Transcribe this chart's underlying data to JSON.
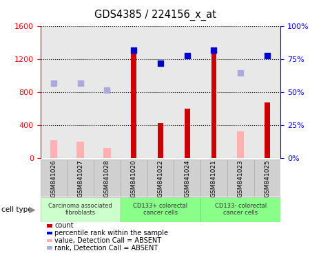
{
  "title": "GDS4385 / 224156_x_at",
  "samples": [
    "GSM841026",
    "GSM841027",
    "GSM841028",
    "GSM841020",
    "GSM841022",
    "GSM841024",
    "GSM841021",
    "GSM841023",
    "GSM841025"
  ],
  "count_values": [
    null,
    null,
    null,
    1340,
    430,
    600,
    1340,
    null,
    680
  ],
  "count_absent": [
    220,
    200,
    130,
    null,
    null,
    null,
    null,
    330,
    null
  ],
  "percentile_values": [
    null,
    null,
    null,
    82,
    72,
    78,
    82,
    null,
    78
  ],
  "percentile_absent": [
    57,
    57,
    52,
    null,
    null,
    null,
    null,
    65,
    null
  ],
  "cell_groups": [
    {
      "label": "Carcinoma associated\nfibroblasts",
      "start": 0,
      "end": 3,
      "color": "#ccffcc"
    },
    {
      "label": "CD133+ colorectal\ncancer cells",
      "start": 3,
      "end": 6,
      "color": "#88ff88"
    },
    {
      "label": "CD133- colorectal\ncancer cells",
      "start": 6,
      "end": 9,
      "color": "#88ff88"
    }
  ],
  "ylim_left": [
    0,
    1600
  ],
  "ylim_right": [
    0,
    100
  ],
  "yticks_left": [
    0,
    400,
    800,
    1200,
    1600
  ],
  "yticks_right": [
    0,
    25,
    50,
    75,
    100
  ],
  "count_color": "#cc0000",
  "count_absent_color": "#ffb0b0",
  "percentile_color": "#0000cc",
  "percentile_absent_color": "#aaaadd",
  "legend_items": [
    {
      "color": "#cc0000",
      "label": "count"
    },
    {
      "color": "#0000cc",
      "label": "percentile rank within the sample"
    },
    {
      "color": "#ffb0b0",
      "label": "value, Detection Call = ABSENT"
    },
    {
      "color": "#aaaadd",
      "label": "rank, Detection Call = ABSENT"
    }
  ],
  "bg_color": "#ffffff",
  "plot_bg_color": "#ffffff",
  "col_bg_color": "#e8e8e8",
  "sample_row_bg": "#d0d0d0"
}
